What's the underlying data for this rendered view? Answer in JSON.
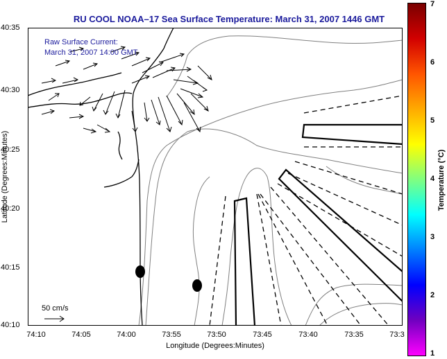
{
  "title": "RU COOL  NOAA–17  Sea Surface Temperature:  March 31, 2007 1446 GMT",
  "axes": {
    "xlabel": "Longitude (Degrees:Minutes)",
    "ylabel": "Latitude (Degrees:Minutes)",
    "x_ticks": [
      "74:10",
      "74:05",
      "74:00",
      "73:55",
      "73:50",
      "73:45",
      "73:40",
      "73:35",
      "73:3"
    ],
    "y_ticks": [
      "40:35",
      "40:30",
      "40:25",
      "40:20",
      "40:15",
      "40:10"
    ]
  },
  "legend": {
    "line1": "Raw Surface Current:",
    "line2": "March 31, 2007 14:00 GMT"
  },
  "scale": {
    "label": "50 cm/s"
  },
  "colorbar": {
    "label": "Temperature (°C)",
    "ticks": [
      "7",
      "6",
      "5",
      "4",
      "3",
      "2",
      "1"
    ],
    "colors": [
      "#7a0000",
      "#d20000",
      "#ff5500",
      "#ffaa00",
      "#ffff00",
      "#80ff80",
      "#00ffff",
      "#0080ff",
      "#0000ff",
      "#7000c0",
      "#ff00ff"
    ]
  },
  "colors": {
    "title": "#1a1a9c",
    "coast": "#000000",
    "bathymetry": "#7f7f7f"
  }
}
